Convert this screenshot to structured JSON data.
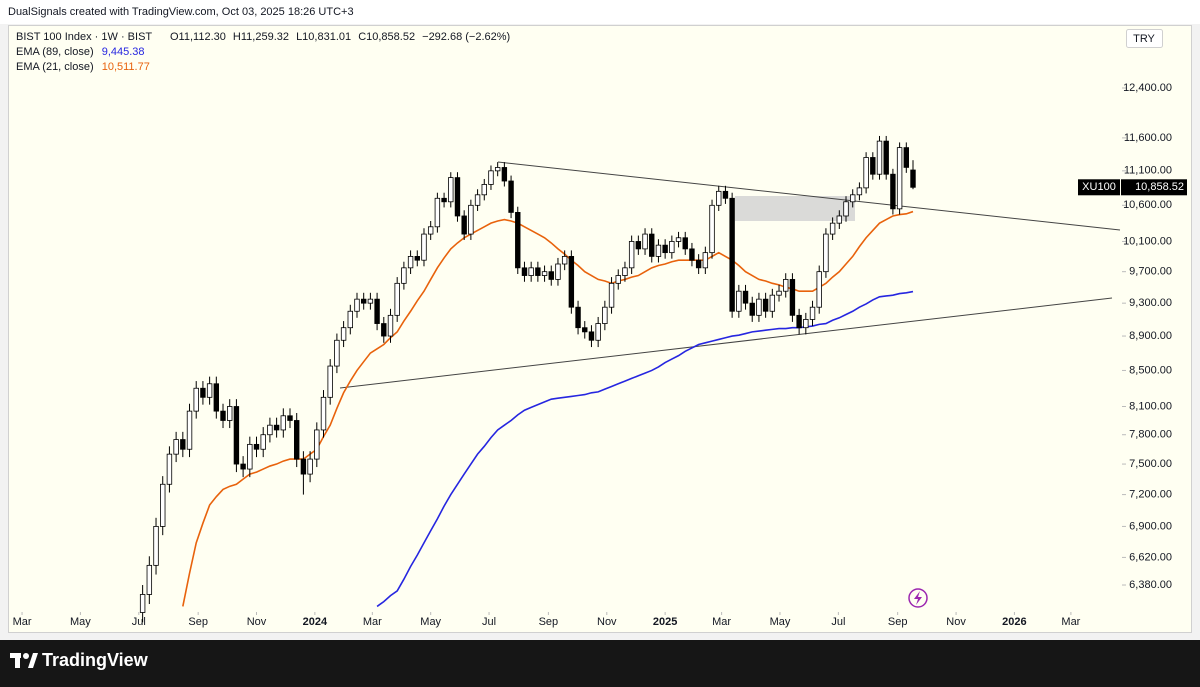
{
  "header": {
    "credit": "DualSignals created with TradingView.com, Oct 03, 2025 18:26 UTC+3"
  },
  "footer": {
    "logo": "TradingView"
  },
  "chart_data": {
    "type": "candlestick",
    "title": "BIST 100 Index · 1W · BIST",
    "ohlc_header": [
      "O11,112.30",
      "H11,259.32",
      "L10,831.01",
      "C10,858.52",
      "−292.68 (−2.62%)"
    ],
    "currency": "TRY",
    "symbol_tag": "XU100",
    "last_price_label": "10,858.52",
    "log_y": true,
    "grid": false,
    "up_color": "#ffffff",
    "down_color": "#000000",
    "x": [
      18,
      19,
      20,
      21,
      22,
      23,
      24,
      25,
      26,
      27,
      28,
      29,
      30,
      31,
      32,
      33,
      34,
      35,
      36,
      37,
      38,
      39,
      40,
      41,
      42,
      43,
      44,
      45,
      46,
      47,
      48,
      49,
      50,
      51,
      52,
      53,
      54,
      55,
      56,
      57,
      58,
      59,
      60,
      61,
      62,
      63,
      64,
      65,
      66,
      67,
      68,
      69,
      70,
      71,
      72,
      73,
      74,
      75,
      76,
      77,
      78,
      79,
      80,
      81,
      82,
      83,
      84,
      85,
      86,
      87,
      88,
      89,
      90,
      91,
      92,
      93,
      94,
      95,
      96,
      97,
      98,
      99,
      100,
      101,
      102,
      103,
      104,
      105,
      106,
      107,
      108,
      109,
      110,
      111,
      112,
      113,
      114,
      115,
      116,
      117,
      118,
      119,
      120,
      121,
      122,
      123,
      124,
      125,
      126,
      127,
      128,
      129,
      130,
      131,
      132,
      133
    ],
    "open": [
      6150,
      6300,
      6550,
      6900,
      7300,
      7600,
      7750,
      7650,
      8050,
      8300,
      8200,
      8350,
      8050,
      7950,
      8100,
      7500,
      7450,
      7700,
      7650,
      7800,
      7900,
      7850,
      8000,
      7950,
      7550,
      7400,
      7550,
      7850,
      8200,
      8550,
      8850,
      9000,
      9200,
      9350,
      9300,
      9350,
      9050,
      8900,
      9150,
      9550,
      9750,
      9900,
      9850,
      10200,
      10300,
      10700,
      10650,
      11000,
      10450,
      10200,
      10600,
      10750,
      10900,
      11100,
      11150,
      10950,
      10500,
      9750,
      9650,
      9750,
      9650,
      9700,
      9600,
      9800,
      9900,
      9250,
      9000,
      8950,
      8850,
      9050,
      9250,
      9550,
      9650,
      9750,
      10100,
      10000,
      10200,
      9900,
      10050,
      9950,
      10100,
      10150,
      10000,
      9850,
      9750,
      9950,
      10600,
      10800,
      10700,
      9200,
      9450,
      9300,
      9150,
      9350,
      9200,
      9400,
      9450,
      9600,
      9150,
      9000,
      9100,
      9250,
      9700,
      10200,
      10350,
      10450,
      10650,
      10750,
      10850,
      11300,
      11050,
      11550,
      11050,
      10550,
      11450,
      11112.3
    ],
    "high": [
      6380,
      6630,
      6980,
      7380,
      7680,
      7830,
      7830,
      8130,
      8380,
      8380,
      8430,
      8430,
      8130,
      8180,
      8180,
      7580,
      7780,
      7780,
      7880,
      7980,
      7980,
      8080,
      8080,
      8030,
      7630,
      7630,
      7930,
      8280,
      8630,
      8930,
      9080,
      9280,
      9430,
      9430,
      9430,
      9430,
      9130,
      9230,
      9630,
      9830,
      9980,
      9980,
      10280,
      10380,
      10780,
      10780,
      11080,
      11080,
      10530,
      10680,
      10830,
      10980,
      11180,
      11230,
      11230,
      11030,
      10580,
      9830,
      9830,
      9830,
      9780,
      9780,
      9880,
      9980,
      9980,
      9330,
      9080,
      9030,
      9130,
      9330,
      9630,
      9730,
      9830,
      10180,
      10180,
      10280,
      10280,
      10130,
      10130,
      10180,
      10230,
      10230,
      10080,
      9930,
      10030,
      10680,
      10880,
      10880,
      10780,
      9530,
      9530,
      9380,
      9430,
      9430,
      9480,
      9530,
      9680,
      9680,
      9230,
      9180,
      9330,
      9780,
      10280,
      10430,
      10530,
      10730,
      10830,
      10930,
      11380,
      11380,
      11630,
      11630,
      11130,
      11530,
      11530,
      11259.32
    ],
    "low": [
      6070,
      6220,
      6470,
      6820,
      7220,
      7520,
      7570,
      7570,
      7970,
      8120,
      8120,
      7970,
      7870,
      7870,
      7420,
      7370,
      7370,
      7570,
      7570,
      7720,
      7770,
      7770,
      7870,
      7470,
      7200,
      7320,
      7470,
      7770,
      8120,
      8470,
      8770,
      8920,
      9120,
      9220,
      9220,
      8970,
      8820,
      8820,
      9070,
      9470,
      9670,
      9770,
      9770,
      10120,
      10220,
      10570,
      10570,
      10370,
      10120,
      10120,
      10520,
      10670,
      10820,
      11020,
      10870,
      10420,
      9670,
      9570,
      9570,
      9570,
      9570,
      9520,
      9520,
      9720,
      9170,
      8920,
      8870,
      8770,
      8770,
      8970,
      9170,
      9470,
      9570,
      9670,
      9920,
      9920,
      9820,
      9820,
      9870,
      9870,
      10020,
      9920,
      9770,
      9670,
      9670,
      9870,
      10520,
      10620,
      9120,
      9120,
      9220,
      9070,
      9070,
      9120,
      9120,
      9320,
      9370,
      9070,
      8920,
      8920,
      9020,
      9170,
      9620,
      10120,
      10270,
      10370,
      10570,
      10670,
      10770,
      10970,
      10970,
      10970,
      10470,
      10470,
      11070,
      10831.01
    ],
    "close": [
      6300,
      6550,
      6900,
      7300,
      7600,
      7750,
      7650,
      8050,
      8300,
      8200,
      8350,
      8050,
      7950,
      8100,
      7500,
      7450,
      7700,
      7650,
      7800,
      7900,
      7850,
      8000,
      7950,
      7550,
      7400,
      7550,
      7850,
      8200,
      8550,
      8850,
      9000,
      9200,
      9350,
      9300,
      9350,
      9050,
      8900,
      9150,
      9550,
      9750,
      9900,
      9850,
      10200,
      10300,
      10700,
      10650,
      11000,
      10450,
      10200,
      10600,
      10750,
      10900,
      11100,
      11150,
      10950,
      10500,
      9750,
      9650,
      9750,
      9650,
      9700,
      9600,
      9800,
      9900,
      9250,
      9000,
      8950,
      8850,
      9050,
      9250,
      9550,
      9650,
      9750,
      10100,
      10000,
      10200,
      9900,
      10050,
      9950,
      10100,
      10150,
      10000,
      9850,
      9750,
      9950,
      10600,
      10800,
      10700,
      9200,
      9450,
      9300,
      9150,
      9350,
      9200,
      9400,
      9450,
      9600,
      9150,
      9000,
      9100,
      9250,
      9700,
      10200,
      10350,
      10450,
      10650,
      10750,
      10850,
      11300,
      11050,
      11550,
      11050,
      10550,
      11450,
      11151.2,
      10858.52
    ],
    "series": [
      {
        "name": "EMA (89, close)",
        "color": "#2626e0",
        "legend_value": "9,445.38",
        "values": [
          null,
          null,
          null,
          null,
          null,
          null,
          null,
          null,
          null,
          null,
          null,
          null,
          null,
          null,
          null,
          null,
          null,
          null,
          null,
          null,
          null,
          null,
          null,
          null,
          null,
          null,
          null,
          null,
          null,
          null,
          null,
          null,
          null,
          null,
          null,
          6200,
          6240,
          6290,
          6330,
          6430,
          6540,
          6640,
          6750,
          6860,
          6970,
          7090,
          7200,
          7300,
          7400,
          7500,
          7600,
          7680,
          7770,
          7850,
          7900,
          7950,
          8010,
          8060,
          8090,
          8120,
          8150,
          8180,
          8190,
          8200,
          8210,
          8220,
          8230,
          8250,
          8260,
          8290,
          8320,
          8350,
          8380,
          8410,
          8440,
          8470,
          8500,
          8540,
          8590,
          8630,
          8670,
          8720,
          8760,
          8800,
          8820,
          8840,
          8860,
          8880,
          8900,
          8910,
          8930,
          8950,
          8960,
          8970,
          8980,
          8990,
          8990,
          9000,
          9000,
          9010,
          9020,
          9040,
          9050,
          9090,
          9120,
          9160,
          9200,
          9250,
          9290,
          9340,
          9380,
          9390,
          9400,
          9420,
          9430,
          9445.38
        ]
      },
      {
        "name": "EMA (21, close)",
        "color": "#e8620c",
        "legend_value": "10,511.77",
        "values": [
          null,
          null,
          null,
          null,
          null,
          null,
          6200,
          6480,
          6750,
          6930,
          7100,
          7180,
          7250,
          7280,
          7300,
          7350,
          7400,
          7420,
          7450,
          7480,
          7500,
          7530,
          7550,
          7550,
          7550,
          7600,
          7650,
          7780,
          7900,
          8080,
          8250,
          8380,
          8500,
          8600,
          8700,
          8750,
          8800,
          8880,
          8950,
          9080,
          9200,
          9330,
          9450,
          9600,
          9750,
          9880,
          10000,
          10080,
          10150,
          10200,
          10250,
          10300,
          10350,
          10380,
          10400,
          10380,
          10350,
          10300,
          10250,
          10200,
          10150,
          10080,
          10000,
          9930,
          9850,
          9780,
          9700,
          9650,
          9600,
          9580,
          9550,
          9580,
          9600,
          9630,
          9650,
          9700,
          9750,
          9780,
          9800,
          9830,
          9850,
          9850,
          9850,
          9850,
          9850,
          9900,
          9950,
          9900,
          9850,
          9780,
          9700,
          9650,
          9600,
          9580,
          9550,
          9530,
          9500,
          9480,
          9450,
          9450,
          9450,
          9500,
          9550,
          9630,
          9700,
          9800,
          9900,
          10030,
          10150,
          10250,
          10350,
          10400,
          10450,
          10470,
          10480,
          10511.77
        ]
      }
    ],
    "xlim": [
      -1.5,
      163.9
    ],
    "ylim": [
      6154,
      13400
    ],
    "xticks": [
      {
        "value": 0,
        "label": "Mar"
      },
      {
        "value": 8.71,
        "label": "May"
      },
      {
        "value": 17.43,
        "label": "Jul"
      },
      {
        "value": 26.29,
        "label": "Sep"
      },
      {
        "value": 35,
        "label": "Nov"
      },
      {
        "value": 43.71,
        "label": "2024"
      },
      {
        "value": 52.29,
        "label": "Mar"
      },
      {
        "value": 61,
        "label": "May"
      },
      {
        "value": 69.71,
        "label": "Jul"
      },
      {
        "value": 78.57,
        "label": "Sep"
      },
      {
        "value": 87.29,
        "label": "Nov"
      },
      {
        "value": 96,
        "label": "2025"
      },
      {
        "value": 104.43,
        "label": "Mar"
      },
      {
        "value": 113.14,
        "label": "May"
      },
      {
        "value": 121.86,
        "label": "Jul"
      },
      {
        "value": 130.71,
        "label": "Sep"
      },
      {
        "value": 139.43,
        "label": "Nov"
      },
      {
        "value": 148.14,
        "label": "2026"
      },
      {
        "value": 156.57,
        "label": "Mar"
      }
    ],
    "yticks": [
      {
        "value": 12400,
        "label": "12,400.00"
      },
      {
        "value": 11600,
        "label": "11,600.00"
      },
      {
        "value": 11100,
        "label": "11,100.00"
      },
      {
        "value": 10600,
        "label": "10,600.00"
      },
      {
        "value": 10100,
        "label": "10,100.00"
      },
      {
        "value": 9700,
        "label": "9,700.00"
      },
      {
        "value": 9300,
        "label": "9,300.00"
      },
      {
        "value": 8900,
        "label": "8,900.00"
      },
      {
        "value": 8500,
        "label": "8,500.00"
      },
      {
        "value": 8100,
        "label": "8,100.00"
      },
      {
        "value": 7800,
        "label": "7,800.00"
      },
      {
        "value": 7500,
        "label": "7,500.00"
      },
      {
        "value": 7200,
        "label": "7,200.00"
      },
      {
        "value": 6900,
        "label": "6,900.00"
      },
      {
        "value": 6620,
        "label": "6,620.00"
      },
      {
        "value": 6380,
        "label": "6,380.00"
      }
    ]
  }
}
